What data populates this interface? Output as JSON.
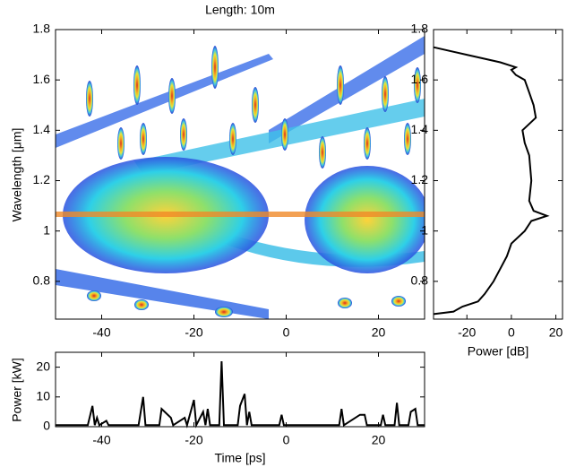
{
  "chart_data": [
    {
      "type": "spectrogram",
      "title": "Length: 10m",
      "y_label": "Wavelength [μm]",
      "xlim": [
        -50,
        30
      ],
      "xticks": [
        -40,
        -20,
        0,
        20
      ],
      "ylim": [
        0.65,
        1.8
      ],
      "yticks": [
        0.8,
        1,
        1.2,
        1.4,
        1.6,
        1.8
      ]
    },
    {
      "type": "line",
      "x_label": "Power [dB]",
      "color": "#000000",
      "xlim": [
        -35,
        23
      ],
      "xticks": [
        -20,
        0,
        20
      ],
      "ylim": [
        0.65,
        1.8
      ],
      "yticks": [
        0.8,
        1,
        1.2,
        1.4,
        1.6,
        1.8
      ],
      "x": [
        -35,
        -20,
        -5,
        2,
        0,
        2,
        6,
        8,
        10,
        11,
        5,
        6,
        8,
        9,
        8,
        10,
        16,
        9,
        6,
        0,
        -2,
        -5,
        -8,
        -12,
        -15,
        -22,
        -26,
        -35
      ],
      "values": [
        1.73,
        1.7,
        1.67,
        1.65,
        1.64,
        1.62,
        1.6,
        1.55,
        1.5,
        1.45,
        1.4,
        1.35,
        1.3,
        1.2,
        1.12,
        1.08,
        1.06,
        1.04,
        1.0,
        0.95,
        0.9,
        0.85,
        0.8,
        0.75,
        0.72,
        0.7,
        0.68,
        0.67
      ]
    },
    {
      "type": "line",
      "x_label": "Time [ps]",
      "y_label": "Power [kW]",
      "color": "#000000",
      "xlim": [
        -50,
        30
      ],
      "xticks": [
        -40,
        -20,
        0,
        20
      ],
      "ylim": [
        0,
        25
      ],
      "yticks": [
        0,
        10,
        20
      ],
      "x": [
        -50,
        -43,
        -42,
        -41.5,
        -41,
        -40.5,
        -39,
        -38.5,
        -32,
        -31,
        -30.5,
        -27.5,
        -27,
        -25,
        -24.5,
        -22,
        -21.5,
        -20,
        -19.5,
        -18,
        -17.5,
        -17,
        -16.5,
        -14.5,
        -14,
        -13.5,
        -10.5,
        -10,
        -9,
        -8.5,
        -8,
        -7.5,
        -1.5,
        -1,
        -0.5,
        11.5,
        12,
        12.5,
        16,
        17,
        17.5,
        20.5,
        21,
        21.5,
        23.5,
        24,
        24.5,
        26.5,
        27,
        28,
        28.5,
        30
      ],
      "values": [
        0.5,
        0.5,
        7,
        0.5,
        3,
        0.5,
        2,
        0.5,
        0.5,
        10,
        0.5,
        0.5,
        6,
        3,
        0.5,
        3,
        0.5,
        9,
        0.5,
        5,
        0.5,
        6,
        0.5,
        0.5,
        22,
        0.5,
        0.5,
        7,
        11,
        0.5,
        5,
        0.5,
        0.5,
        4,
        0.5,
        0.5,
        6,
        0.5,
        4,
        4,
        0.5,
        0.5,
        4,
        0.5,
        0.5,
        8,
        0.5,
        0.5,
        5,
        6,
        0.5,
        0.5
      ]
    }
  ]
}
